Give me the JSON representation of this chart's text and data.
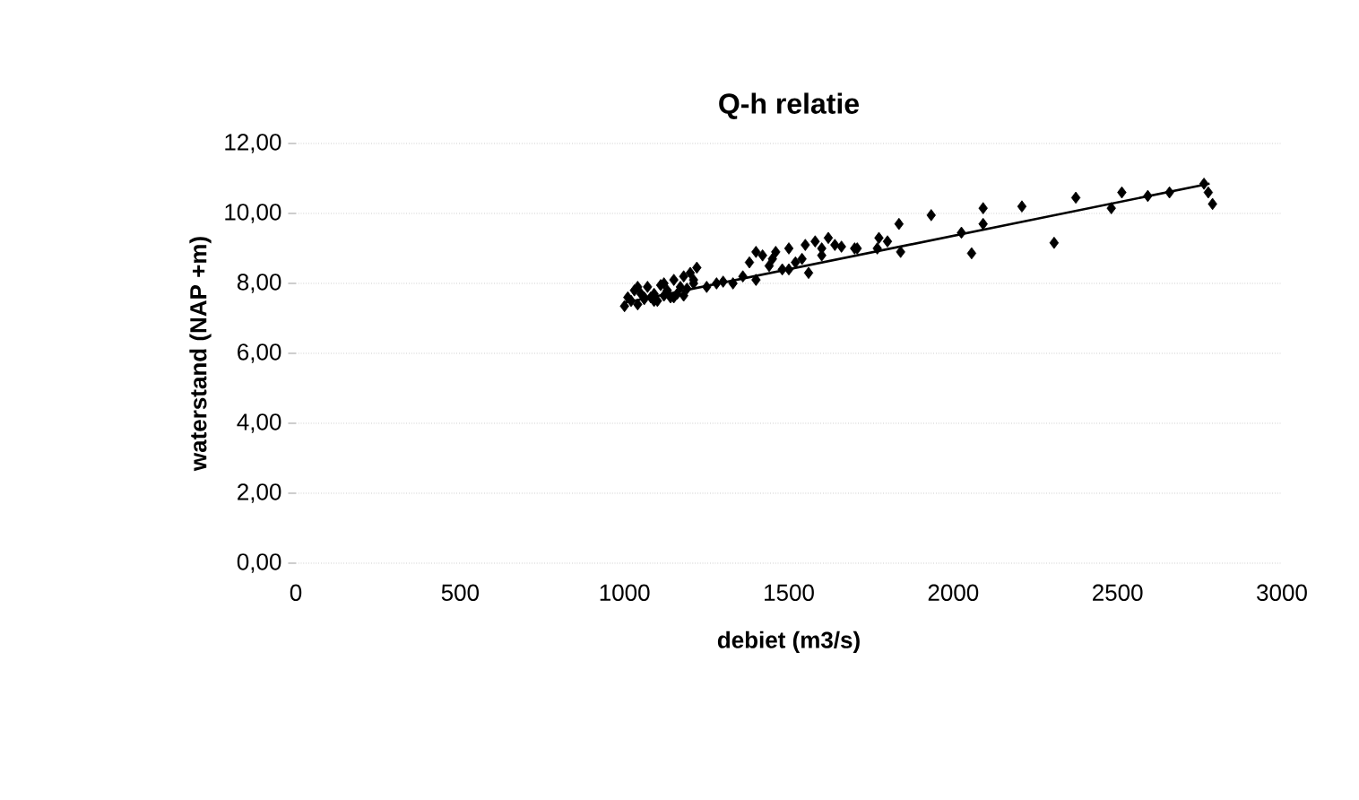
{
  "chart_data": {
    "type": "scatter",
    "title": "Q-h relatie",
    "xlabel": "debiet (m3/s)",
    "ylabel": "waterstand (NAP +m)",
    "xlim": [
      0,
      3000
    ],
    "xticks": [
      0,
      500,
      1000,
      1500,
      2000,
      2500,
      3000
    ],
    "ylim": [
      0,
      12
    ],
    "yticks": [
      {
        "value": 0,
        "label": "0,00"
      },
      {
        "value": 2,
        "label": "2,00"
      },
      {
        "value": 4,
        "label": "4,00"
      },
      {
        "value": 6,
        "label": "6,00"
      },
      {
        "value": 8,
        "label": "8,00"
      },
      {
        "value": 10,
        "label": "10,00"
      },
      {
        "value": 12,
        "label": "12,00"
      }
    ],
    "grid": "y",
    "marker": "diamond",
    "series": [
      {
        "color": "#000000",
        "x": [
          1000,
          1010,
          1020,
          1030,
          1040,
          1050,
          1060,
          1070,
          1080,
          1090,
          1100,
          1110,
          1120,
          1130,
          1140,
          1150,
          1160,
          1170,
          1180,
          1190,
          1200,
          1210,
          1220,
          1040,
          1060,
          1090,
          1120,
          1150,
          1180,
          1210,
          1250,
          1280,
          1300,
          1330,
          1360,
          1380,
          1400,
          1420,
          1440,
          1460,
          1480,
          1500,
          1520,
          1540,
          1560,
          1580,
          1600,
          1620,
          1640,
          1660,
          1400,
          1450,
          1500,
          1550,
          1600,
          1700,
          1708,
          1769,
          1774,
          1800,
          1835,
          1840,
          1933,
          2025,
          2056,
          2091,
          2091,
          2209,
          2307,
          2373,
          2481,
          2513,
          2592,
          2658,
          2763,
          2776,
          2789
        ],
        "values": [
          7.35,
          7.6,
          7.5,
          7.8,
          7.4,
          7.7,
          7.55,
          7.9,
          7.6,
          7.7,
          7.5,
          7.95,
          7.65,
          7.8,
          7.6,
          8.1,
          7.7,
          7.9,
          8.2,
          7.85,
          8.3,
          8.0,
          8.45,
          7.9,
          7.6,
          7.5,
          8.0,
          7.6,
          7.65,
          8.1,
          7.9,
          8.0,
          8.05,
          8.0,
          8.2,
          8.6,
          8.1,
          8.8,
          8.5,
          8.9,
          8.4,
          9.0,
          8.6,
          8.7,
          8.3,
          9.2,
          9.0,
          9.3,
          9.1,
          9.05,
          8.9,
          8.7,
          8.4,
          9.1,
          8.8,
          9.0,
          9.0,
          9.0,
          9.3,
          9.2,
          9.7,
          8.9,
          9.95,
          9.45,
          8.86,
          10.15,
          9.7,
          10.2,
          9.16,
          10.45,
          10.15,
          10.6,
          10.5,
          10.6,
          10.85,
          10.6,
          10.27
        ]
      },
      {
        "type": "line",
        "color": "#000000",
        "marker": "none",
        "x": [
          1000,
          2780
        ],
        "values": [
          7.45,
          10.85
        ]
      }
    ]
  }
}
